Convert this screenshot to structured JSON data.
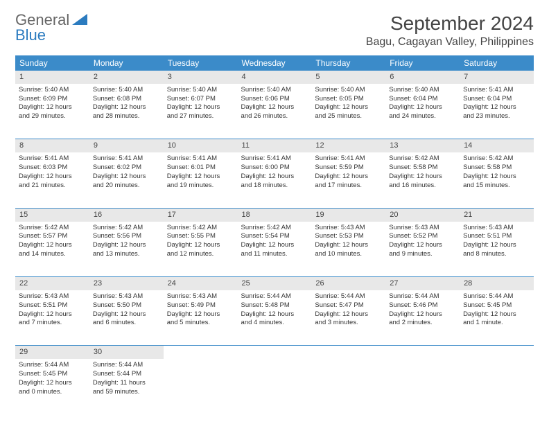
{
  "logo": {
    "text1": "General",
    "text2": "Blue"
  },
  "title": {
    "month": "September 2024",
    "location": "Bagu, Cagayan Valley, Philippines"
  },
  "colors": {
    "header_bg": "#3b8bc9",
    "header_text": "#ffffff",
    "daynum_bg": "#e8e8e8",
    "row_border": "#3b8bc9",
    "body_text": "#333333",
    "logo_gray": "#666666",
    "logo_blue": "#2b7bbf"
  },
  "weekdays": [
    "Sunday",
    "Monday",
    "Tuesday",
    "Wednesday",
    "Thursday",
    "Friday",
    "Saturday"
  ],
  "weeks": [
    {
      "nums": [
        "1",
        "2",
        "3",
        "4",
        "5",
        "6",
        "7"
      ],
      "cells": [
        {
          "sunrise": "Sunrise: 5:40 AM",
          "sunset": "Sunset: 6:09 PM",
          "d1": "Daylight: 12 hours",
          "d2": "and 29 minutes."
        },
        {
          "sunrise": "Sunrise: 5:40 AM",
          "sunset": "Sunset: 6:08 PM",
          "d1": "Daylight: 12 hours",
          "d2": "and 28 minutes."
        },
        {
          "sunrise": "Sunrise: 5:40 AM",
          "sunset": "Sunset: 6:07 PM",
          "d1": "Daylight: 12 hours",
          "d2": "and 27 minutes."
        },
        {
          "sunrise": "Sunrise: 5:40 AM",
          "sunset": "Sunset: 6:06 PM",
          "d1": "Daylight: 12 hours",
          "d2": "and 26 minutes."
        },
        {
          "sunrise": "Sunrise: 5:40 AM",
          "sunset": "Sunset: 6:05 PM",
          "d1": "Daylight: 12 hours",
          "d2": "and 25 minutes."
        },
        {
          "sunrise": "Sunrise: 5:40 AM",
          "sunset": "Sunset: 6:04 PM",
          "d1": "Daylight: 12 hours",
          "d2": "and 24 minutes."
        },
        {
          "sunrise": "Sunrise: 5:41 AM",
          "sunset": "Sunset: 6:04 PM",
          "d1": "Daylight: 12 hours",
          "d2": "and 23 minutes."
        }
      ]
    },
    {
      "nums": [
        "8",
        "9",
        "10",
        "11",
        "12",
        "13",
        "14"
      ],
      "cells": [
        {
          "sunrise": "Sunrise: 5:41 AM",
          "sunset": "Sunset: 6:03 PM",
          "d1": "Daylight: 12 hours",
          "d2": "and 21 minutes."
        },
        {
          "sunrise": "Sunrise: 5:41 AM",
          "sunset": "Sunset: 6:02 PM",
          "d1": "Daylight: 12 hours",
          "d2": "and 20 minutes."
        },
        {
          "sunrise": "Sunrise: 5:41 AM",
          "sunset": "Sunset: 6:01 PM",
          "d1": "Daylight: 12 hours",
          "d2": "and 19 minutes."
        },
        {
          "sunrise": "Sunrise: 5:41 AM",
          "sunset": "Sunset: 6:00 PM",
          "d1": "Daylight: 12 hours",
          "d2": "and 18 minutes."
        },
        {
          "sunrise": "Sunrise: 5:41 AM",
          "sunset": "Sunset: 5:59 PM",
          "d1": "Daylight: 12 hours",
          "d2": "and 17 minutes."
        },
        {
          "sunrise": "Sunrise: 5:42 AM",
          "sunset": "Sunset: 5:58 PM",
          "d1": "Daylight: 12 hours",
          "d2": "and 16 minutes."
        },
        {
          "sunrise": "Sunrise: 5:42 AM",
          "sunset": "Sunset: 5:58 PM",
          "d1": "Daylight: 12 hours",
          "d2": "and 15 minutes."
        }
      ]
    },
    {
      "nums": [
        "15",
        "16",
        "17",
        "18",
        "19",
        "20",
        "21"
      ],
      "cells": [
        {
          "sunrise": "Sunrise: 5:42 AM",
          "sunset": "Sunset: 5:57 PM",
          "d1": "Daylight: 12 hours",
          "d2": "and 14 minutes."
        },
        {
          "sunrise": "Sunrise: 5:42 AM",
          "sunset": "Sunset: 5:56 PM",
          "d1": "Daylight: 12 hours",
          "d2": "and 13 minutes."
        },
        {
          "sunrise": "Sunrise: 5:42 AM",
          "sunset": "Sunset: 5:55 PM",
          "d1": "Daylight: 12 hours",
          "d2": "and 12 minutes."
        },
        {
          "sunrise": "Sunrise: 5:42 AM",
          "sunset": "Sunset: 5:54 PM",
          "d1": "Daylight: 12 hours",
          "d2": "and 11 minutes."
        },
        {
          "sunrise": "Sunrise: 5:43 AM",
          "sunset": "Sunset: 5:53 PM",
          "d1": "Daylight: 12 hours",
          "d2": "and 10 minutes."
        },
        {
          "sunrise": "Sunrise: 5:43 AM",
          "sunset": "Sunset: 5:52 PM",
          "d1": "Daylight: 12 hours",
          "d2": "and 9 minutes."
        },
        {
          "sunrise": "Sunrise: 5:43 AM",
          "sunset": "Sunset: 5:51 PM",
          "d1": "Daylight: 12 hours",
          "d2": "and 8 minutes."
        }
      ]
    },
    {
      "nums": [
        "22",
        "23",
        "24",
        "25",
        "26",
        "27",
        "28"
      ],
      "cells": [
        {
          "sunrise": "Sunrise: 5:43 AM",
          "sunset": "Sunset: 5:51 PM",
          "d1": "Daylight: 12 hours",
          "d2": "and 7 minutes."
        },
        {
          "sunrise": "Sunrise: 5:43 AM",
          "sunset": "Sunset: 5:50 PM",
          "d1": "Daylight: 12 hours",
          "d2": "and 6 minutes."
        },
        {
          "sunrise": "Sunrise: 5:43 AM",
          "sunset": "Sunset: 5:49 PM",
          "d1": "Daylight: 12 hours",
          "d2": "and 5 minutes."
        },
        {
          "sunrise": "Sunrise: 5:44 AM",
          "sunset": "Sunset: 5:48 PM",
          "d1": "Daylight: 12 hours",
          "d2": "and 4 minutes."
        },
        {
          "sunrise": "Sunrise: 5:44 AM",
          "sunset": "Sunset: 5:47 PM",
          "d1": "Daylight: 12 hours",
          "d2": "and 3 minutes."
        },
        {
          "sunrise": "Sunrise: 5:44 AM",
          "sunset": "Sunset: 5:46 PM",
          "d1": "Daylight: 12 hours",
          "d2": "and 2 minutes."
        },
        {
          "sunrise": "Sunrise: 5:44 AM",
          "sunset": "Sunset: 5:45 PM",
          "d1": "Daylight: 12 hours",
          "d2": "and 1 minute."
        }
      ]
    },
    {
      "nums": [
        "29",
        "30",
        "",
        "",
        "",
        "",
        ""
      ],
      "cells": [
        {
          "sunrise": "Sunrise: 5:44 AM",
          "sunset": "Sunset: 5:45 PM",
          "d1": "Daylight: 12 hours",
          "d2": "and 0 minutes."
        },
        {
          "sunrise": "Sunrise: 5:44 AM",
          "sunset": "Sunset: 5:44 PM",
          "d1": "Daylight: 11 hours",
          "d2": "and 59 minutes."
        },
        null,
        null,
        null,
        null,
        null
      ]
    }
  ]
}
